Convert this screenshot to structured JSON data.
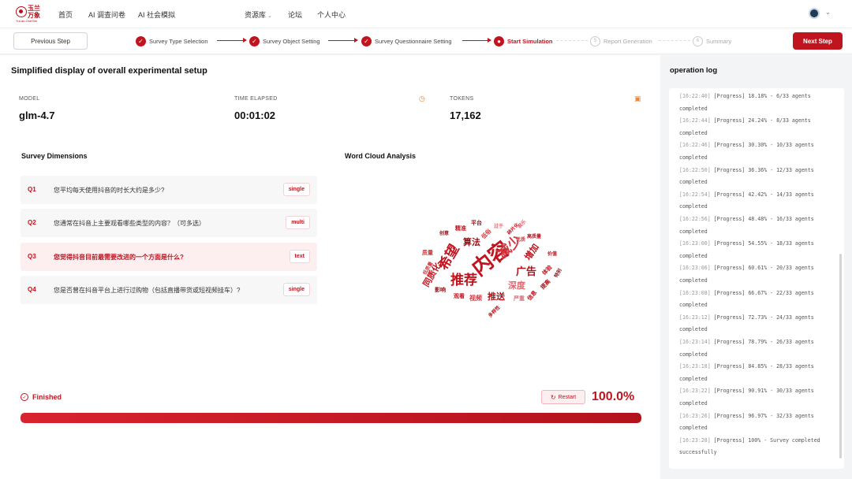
{
  "nav": {
    "logo_text": "玉兰万象",
    "logo_sub": "YuLan-OneSim",
    "items": [
      "首页",
      "AI 调查问卷",
      "AI 社会模拟"
    ],
    "center_items": [
      "资源库",
      "论坛",
      "个人中心"
    ]
  },
  "stepper": {
    "prev_label": "Previous Step",
    "next_label": "Next Step",
    "steps": [
      {
        "label": "Survey Type Selection",
        "status": "done"
      },
      {
        "label": "Survey Object Setting",
        "status": "done"
      },
      {
        "label": "Survey Questionnaire Setting",
        "status": "done"
      },
      {
        "label": "Start Simulation",
        "status": "active"
      },
      {
        "label": "Report Generation",
        "status": "pending",
        "num": "5"
      },
      {
        "label": "Summary",
        "status": "pending",
        "num": "6"
      }
    ]
  },
  "main": {
    "title": "Simplified display of overall experimental setup",
    "metrics": {
      "model": {
        "label": "MODEL",
        "value": "glm-4.7"
      },
      "time": {
        "label": "TIME ELAPSED",
        "value": "00:01:02"
      },
      "tokens": {
        "label": "TOKENS",
        "value": "17,162"
      }
    },
    "survey_dimensions_title": "Survey Dimensions",
    "word_cloud_title": "Word Cloud Analysis",
    "questions": [
      {
        "id": "Q1",
        "text": "您平均每天使用抖音的时长大约是多少?",
        "type": "single"
      },
      {
        "id": "Q2",
        "text": "您通常在抖音上主要观看哪些类型的内容？（可多选）",
        "type": "multi"
      },
      {
        "id": "Q3",
        "text": "您觉得抖音目前最需要改进的一个方面是什么?",
        "type": "text"
      },
      {
        "id": "Q4",
        "text": "您是否曾在抖音平台上进行过购物（包括直播带货或短视频挂车）?",
        "type": "single"
      }
    ],
    "status_label": "Finished",
    "restart_label": "Restart",
    "progress_text": "100.0%",
    "progress": 1.0
  },
  "word_cloud": [
    {
      "text": "内容",
      "color": "#c0151f"
    },
    {
      "text": "推荐",
      "color": "#c0151f"
    },
    {
      "text": "希望",
      "color": "#c0151f"
    },
    {
      "text": "减少",
      "color": "#d43a43"
    },
    {
      "text": "广告",
      "color": "#b5121b"
    },
    {
      "text": "算法",
      "color": "#8e1016"
    },
    {
      "text": "深度",
      "color": "#e06a72"
    },
    {
      "text": "推送",
      "color": "#b5121b"
    },
    {
      "text": "增加",
      "color": "#c0151f"
    },
    {
      "text": "同质化",
      "color": "#c0151f"
    },
    {
      "text": "视频",
      "color": "#d43a43"
    },
    {
      "text": "平台",
      "color": "#8e1016"
    },
    {
      "text": "精准",
      "color": "#b5121b"
    },
    {
      "text": "低俗",
      "color": "#d43a43"
    },
    {
      "text": "信息",
      "color": "#c0151f"
    },
    {
      "text": "影响",
      "color": "#8e1016"
    },
    {
      "text": "观看",
      "color": "#c0151f"
    },
    {
      "text": "质量",
      "color": "#d43a43"
    },
    {
      "text": "严重",
      "color": "#e06a72"
    },
    {
      "text": "优质",
      "color": "#d43a43"
    },
    {
      "text": "提高",
      "color": "#b5121b"
    },
    {
      "text": "高质量",
      "color": "#c0151f"
    },
    {
      "text": "创意",
      "color": "#8e1016"
    },
    {
      "text": "过于",
      "color": "#e06a72"
    },
    {
      "text": "碎片化",
      "color": "#c0151f"
    },
    {
      "text": "娱乐",
      "color": "#e06a72"
    },
    {
      "text": "价值",
      "color": "#b5121b"
    },
    {
      "text": "低质量",
      "color": "#d43a43"
    },
    {
      "text": "特别",
      "color": "#8e1016"
    },
    {
      "text": "多样性",
      "color": "#b5121b"
    },
    {
      "text": "体验",
      "color": "#c0151f"
    }
  ],
  "log": {
    "title": "operation log",
    "entries": [
      {
        "ts": "[16:22:40]",
        "msg": " [Progress] 18.18% - 6/33 agents completed"
      },
      {
        "ts": "[16:22:44]",
        "msg": " [Progress] 24.24% - 8/33 agents completed"
      },
      {
        "ts": "[16:22:46]",
        "msg": " [Progress] 30.30% - 10/33 agents completed"
      },
      {
        "ts": "[16:22:50]",
        "msg": " [Progress] 36.36% - 12/33 agents completed"
      },
      {
        "ts": "[16:22:54]",
        "msg": " [Progress] 42.42% - 14/33 agents completed"
      },
      {
        "ts": "[16:22:56]",
        "msg": " [Progress] 48.48% - 16/33 agents completed"
      },
      {
        "ts": "[16:23:00]",
        "msg": " [Progress] 54.55% - 18/33 agents completed"
      },
      {
        "ts": "[16:23:06]",
        "msg": " [Progress] 60.61% - 20/33 agents completed"
      },
      {
        "ts": "[16:23:08]",
        "msg": " [Progress] 66.67% - 22/33 agents completed"
      },
      {
        "ts": "[16:23:12]",
        "msg": " [Progress] 72.73% - 24/33 agents completed"
      },
      {
        "ts": "[16:23:14]",
        "msg": " [Progress] 78.79% - 26/33 agents completed"
      },
      {
        "ts": "[16:23:18]",
        "msg": " [Progress] 84.85% - 28/33 agents completed"
      },
      {
        "ts": "[16:23:22]",
        "msg": " [Progress] 90.91% - 30/33 agents completed"
      },
      {
        "ts": "[16:23:26]",
        "msg": " [Progress] 96.97% - 32/33 agents completed"
      },
      {
        "ts": "[16:23:28]",
        "msg": " [Progress] 100% - Survey completed successfully"
      }
    ]
  }
}
